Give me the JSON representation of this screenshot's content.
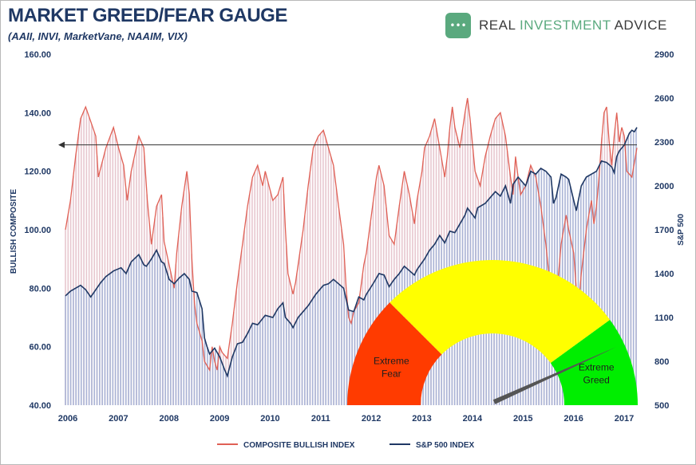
{
  "title": "MARKET GREED/FEAR GAUGE",
  "subtitle": "(AAII, INVI, MarketVane, NAAIM, VIX)",
  "logo": {
    "icon": "chat-bubble-icon",
    "badge_glyph": "•••",
    "word1": "REAL",
    "word2": "INVESTMENT",
    "word3": "ADVICE"
  },
  "colors": {
    "bullish": "#e06055",
    "bullish_fill": "#e7c7cf",
    "spx": "#1f3864",
    "spx_fill": "#aab4d6",
    "fear": "#ff3b00",
    "neutral": "#ffff00",
    "greed": "#00ee00",
    "needle": "#555555",
    "text": "#1f3864"
  },
  "chart_data": {
    "type": "line",
    "title": "MARKET GREED/FEAR GAUGE",
    "subtitle": "(AAII, INVI, MarketVane, NAAIM, VIX)",
    "xlabel": "",
    "ylabel": "BULLISH COMPOSITE",
    "y2label": "S&P 500",
    "xlim": [
      2006,
      2017.3
    ],
    "ylim": [
      40,
      160
    ],
    "y2lim": [
      500,
      2900
    ],
    "x_ticks": [
      "2006",
      "2007",
      "2008",
      "2009",
      "2010",
      "2011",
      "2012",
      "2013",
      "2014",
      "2015",
      "2016",
      "2017"
    ],
    "y_ticks": [
      "40.00",
      "60.00",
      "80.00",
      "100.00",
      "120.00",
      "140.00",
      "160.00"
    ],
    "y2_ticks": [
      "500",
      "800",
      "1100",
      "1400",
      "1700",
      "2000",
      "2300",
      "2600",
      "2900"
    ],
    "reference_line": {
      "y": 129,
      "style": "arrow"
    },
    "legend": {
      "placement": "bottom-center"
    },
    "series": [
      {
        "name": "COMPOSITE BULLISH INDEX",
        "axis": "left",
        "points": [
          [
            2006.0,
            100
          ],
          [
            2006.1,
            110
          ],
          [
            2006.2,
            125
          ],
          [
            2006.3,
            138
          ],
          [
            2006.4,
            142
          ],
          [
            2006.5,
            137
          ],
          [
            2006.6,
            132
          ],
          [
            2006.65,
            118
          ],
          [
            2006.8,
            128
          ],
          [
            2006.95,
            135
          ],
          [
            2007.05,
            128
          ],
          [
            2007.15,
            122
          ],
          [
            2007.22,
            110
          ],
          [
            2007.3,
            120
          ],
          [
            2007.45,
            132
          ],
          [
            2007.55,
            128
          ],
          [
            2007.62,
            110
          ],
          [
            2007.7,
            95
          ],
          [
            2007.8,
            108
          ],
          [
            2007.9,
            112
          ],
          [
            2007.95,
            96
          ],
          [
            2008.05,
            88
          ],
          [
            2008.15,
            80
          ],
          [
            2008.2,
            92
          ],
          [
            2008.3,
            108
          ],
          [
            2008.4,
            120
          ],
          [
            2008.45,
            112
          ],
          [
            2008.5,
            90
          ],
          [
            2008.55,
            75
          ],
          [
            2008.6,
            68
          ],
          [
            2008.7,
            62
          ],
          [
            2008.75,
            55
          ],
          [
            2008.85,
            52
          ],
          [
            2008.9,
            60
          ],
          [
            2008.95,
            55
          ],
          [
            2009.0,
            52
          ],
          [
            2009.05,
            60
          ],
          [
            2009.1,
            58
          ],
          [
            2009.2,
            56
          ],
          [
            2009.3,
            68
          ],
          [
            2009.4,
            82
          ],
          [
            2009.5,
            95
          ],
          [
            2009.6,
            108
          ],
          [
            2009.7,
            118
          ],
          [
            2009.8,
            122
          ],
          [
            2009.9,
            115
          ],
          [
            2009.95,
            120
          ],
          [
            2010.1,
            110
          ],
          [
            2010.2,
            112
          ],
          [
            2010.3,
            118
          ],
          [
            2010.35,
            100
          ],
          [
            2010.4,
            85
          ],
          [
            2010.5,
            78
          ],
          [
            2010.55,
            82
          ],
          [
            2010.6,
            88
          ],
          [
            2010.7,
            100
          ],
          [
            2010.8,
            115
          ],
          [
            2010.9,
            128
          ],
          [
            2011.0,
            132
          ],
          [
            2011.1,
            134
          ],
          [
            2011.2,
            128
          ],
          [
            2011.3,
            122
          ],
          [
            2011.4,
            108
          ],
          [
            2011.5,
            95
          ],
          [
            2011.55,
            80
          ],
          [
            2011.6,
            70
          ],
          [
            2011.65,
            68
          ],
          [
            2011.7,
            72
          ],
          [
            2011.8,
            75
          ],
          [
            2011.9,
            88
          ],
          [
            2011.95,
            92
          ],
          [
            2012.05,
            105
          ],
          [
            2012.15,
            118
          ],
          [
            2012.2,
            122
          ],
          [
            2012.3,
            115
          ],
          [
            2012.4,
            98
          ],
          [
            2012.5,
            95
          ],
          [
            2012.6,
            108
          ],
          [
            2012.7,
            120
          ],
          [
            2012.8,
            112
          ],
          [
            2012.9,
            102
          ],
          [
            2012.95,
            110
          ],
          [
            2013.05,
            120
          ],
          [
            2013.1,
            128
          ],
          [
            2013.2,
            132
          ],
          [
            2013.3,
            138
          ],
          [
            2013.4,
            128
          ],
          [
            2013.5,
            118
          ],
          [
            2013.55,
            125
          ],
          [
            2013.6,
            135
          ],
          [
            2013.65,
            142
          ],
          [
            2013.7,
            135
          ],
          [
            2013.8,
            128
          ],
          [
            2013.9,
            140
          ],
          [
            2013.95,
            145
          ],
          [
            2014.0,
            138
          ],
          [
            2014.1,
            120
          ],
          [
            2014.2,
            115
          ],
          [
            2014.3,
            125
          ],
          [
            2014.4,
            132
          ],
          [
            2014.5,
            138
          ],
          [
            2014.6,
            140
          ],
          [
            2014.7,
            132
          ],
          [
            2014.8,
            118
          ],
          [
            2014.85,
            112
          ],
          [
            2014.9,
            125
          ],
          [
            2014.95,
            118
          ],
          [
            2015.0,
            112
          ],
          [
            2015.1,
            115
          ],
          [
            2015.2,
            122
          ],
          [
            2015.3,
            118
          ],
          [
            2015.4,
            108
          ],
          [
            2015.5,
            95
          ],
          [
            2015.6,
            78
          ],
          [
            2015.65,
            72
          ],
          [
            2015.7,
            75
          ],
          [
            2015.8,
            95
          ],
          [
            2015.9,
            105
          ],
          [
            2015.95,
            100
          ],
          [
            2016.05,
            92
          ],
          [
            2016.1,
            80
          ],
          [
            2016.15,
            75
          ],
          [
            2016.2,
            85
          ],
          [
            2016.3,
            100
          ],
          [
            2016.4,
            110
          ],
          [
            2016.45,
            102
          ],
          [
            2016.5,
            108
          ],
          [
            2016.55,
            118
          ],
          [
            2016.6,
            130
          ],
          [
            2016.65,
            140
          ],
          [
            2016.7,
            142
          ],
          [
            2016.75,
            130
          ],
          [
            2016.8,
            122
          ],
          [
            2016.85,
            132
          ],
          [
            2016.9,
            140
          ],
          [
            2016.95,
            130
          ],
          [
            2017.0,
            135
          ],
          [
            2017.05,
            132
          ],
          [
            2017.1,
            120
          ],
          [
            2017.2,
            118
          ],
          [
            2017.3,
            128
          ]
        ]
      },
      {
        "name": "S&P 500 INDEX",
        "axis": "right",
        "points": [
          [
            2006.0,
            1248
          ],
          [
            2006.1,
            1280
          ],
          [
            2006.2,
            1300
          ],
          [
            2006.3,
            1320
          ],
          [
            2006.4,
            1290
          ],
          [
            2006.5,
            1240
          ],
          [
            2006.6,
            1290
          ],
          [
            2006.7,
            1340
          ],
          [
            2006.8,
            1380
          ],
          [
            2006.95,
            1418
          ],
          [
            2007.1,
            1440
          ],
          [
            2007.2,
            1400
          ],
          [
            2007.3,
            1480
          ],
          [
            2007.45,
            1530
          ],
          [
            2007.55,
            1460
          ],
          [
            2007.6,
            1450
          ],
          [
            2007.7,
            1500
          ],
          [
            2007.8,
            1560
          ],
          [
            2007.9,
            1480
          ],
          [
            2007.95,
            1470
          ],
          [
            2008.05,
            1360
          ],
          [
            2008.15,
            1330
          ],
          [
            2008.25,
            1370
          ],
          [
            2008.35,
            1400
          ],
          [
            2008.45,
            1360
          ],
          [
            2008.5,
            1280
          ],
          [
            2008.6,
            1270
          ],
          [
            2008.7,
            1160
          ],
          [
            2008.75,
            960
          ],
          [
            2008.8,
            900
          ],
          [
            2008.85,
            850
          ],
          [
            2008.95,
            890
          ],
          [
            2009.05,
            830
          ],
          [
            2009.15,
            740
          ],
          [
            2009.2,
            700
          ],
          [
            2009.3,
            830
          ],
          [
            2009.4,
            920
          ],
          [
            2009.5,
            930
          ],
          [
            2009.6,
            990
          ],
          [
            2009.7,
            1060
          ],
          [
            2009.8,
            1050
          ],
          [
            2009.95,
            1115
          ],
          [
            2010.1,
            1100
          ],
          [
            2010.2,
            1160
          ],
          [
            2010.3,
            1200
          ],
          [
            2010.35,
            1100
          ],
          [
            2010.45,
            1060
          ],
          [
            2010.5,
            1030
          ],
          [
            2010.6,
            1100
          ],
          [
            2010.7,
            1140
          ],
          [
            2010.8,
            1180
          ],
          [
            2010.95,
            1258
          ],
          [
            2011.1,
            1320
          ],
          [
            2011.2,
            1330
          ],
          [
            2011.3,
            1360
          ],
          [
            2011.4,
            1330
          ],
          [
            2011.5,
            1300
          ],
          [
            2011.6,
            1150
          ],
          [
            2011.7,
            1140
          ],
          [
            2011.8,
            1240
          ],
          [
            2011.9,
            1220
          ],
          [
            2011.95,
            1258
          ],
          [
            2012.1,
            1340
          ],
          [
            2012.2,
            1400
          ],
          [
            2012.3,
            1390
          ],
          [
            2012.4,
            1310
          ],
          [
            2012.5,
            1360
          ],
          [
            2012.6,
            1400
          ],
          [
            2012.7,
            1450
          ],
          [
            2012.8,
            1420
          ],
          [
            2012.9,
            1390
          ],
          [
            2012.95,
            1426
          ],
          [
            2013.1,
            1500
          ],
          [
            2013.2,
            1560
          ],
          [
            2013.3,
            1600
          ],
          [
            2013.4,
            1660
          ],
          [
            2013.5,
            1610
          ],
          [
            2013.6,
            1690
          ],
          [
            2013.7,
            1680
          ],
          [
            2013.8,
            1740
          ],
          [
            2013.9,
            1800
          ],
          [
            2013.95,
            1848
          ],
          [
            2014.1,
            1780
          ],
          [
            2014.15,
            1850
          ],
          [
            2014.3,
            1880
          ],
          [
            2014.4,
            1920
          ],
          [
            2014.5,
            1960
          ],
          [
            2014.6,
            1930
          ],
          [
            2014.7,
            2000
          ],
          [
            2014.8,
            1880
          ],
          [
            2014.85,
            2010
          ],
          [
            2014.95,
            2060
          ],
          [
            2015.1,
            2000
          ],
          [
            2015.2,
            2100
          ],
          [
            2015.3,
            2080
          ],
          [
            2015.4,
            2120
          ],
          [
            2015.5,
            2100
          ],
          [
            2015.6,
            2060
          ],
          [
            2015.65,
            1880
          ],
          [
            2015.7,
            1920
          ],
          [
            2015.8,
            2080
          ],
          [
            2015.9,
            2060
          ],
          [
            2015.95,
            2044
          ],
          [
            2016.05,
            1900
          ],
          [
            2016.1,
            1830
          ],
          [
            2016.2,
            2000
          ],
          [
            2016.3,
            2060
          ],
          [
            2016.4,
            2080
          ],
          [
            2016.5,
            2100
          ],
          [
            2016.6,
            2170
          ],
          [
            2016.7,
            2160
          ],
          [
            2016.8,
            2130
          ],
          [
            2016.85,
            2090
          ],
          [
            2016.9,
            2200
          ],
          [
            2016.95,
            2238
          ],
          [
            2017.05,
            2280
          ],
          [
            2017.15,
            2360
          ],
          [
            2017.2,
            2380
          ],
          [
            2017.25,
            2370
          ],
          [
            2017.3,
            2400
          ]
        ]
      }
    ],
    "gauge": {
      "min": 0,
      "max": 100,
      "zones": [
        {
          "label": "Extreme Fear",
          "line1": "Extreme",
          "line2": "Fear",
          "from": 0,
          "to": 25
        },
        {
          "label": "",
          "from": 25,
          "to": 80
        },
        {
          "label": "Extreme Greed",
          "line1": "Extreme",
          "line2": "Greed",
          "from": 80,
          "to": 100
        }
      ],
      "needle_value": 86
    }
  }
}
